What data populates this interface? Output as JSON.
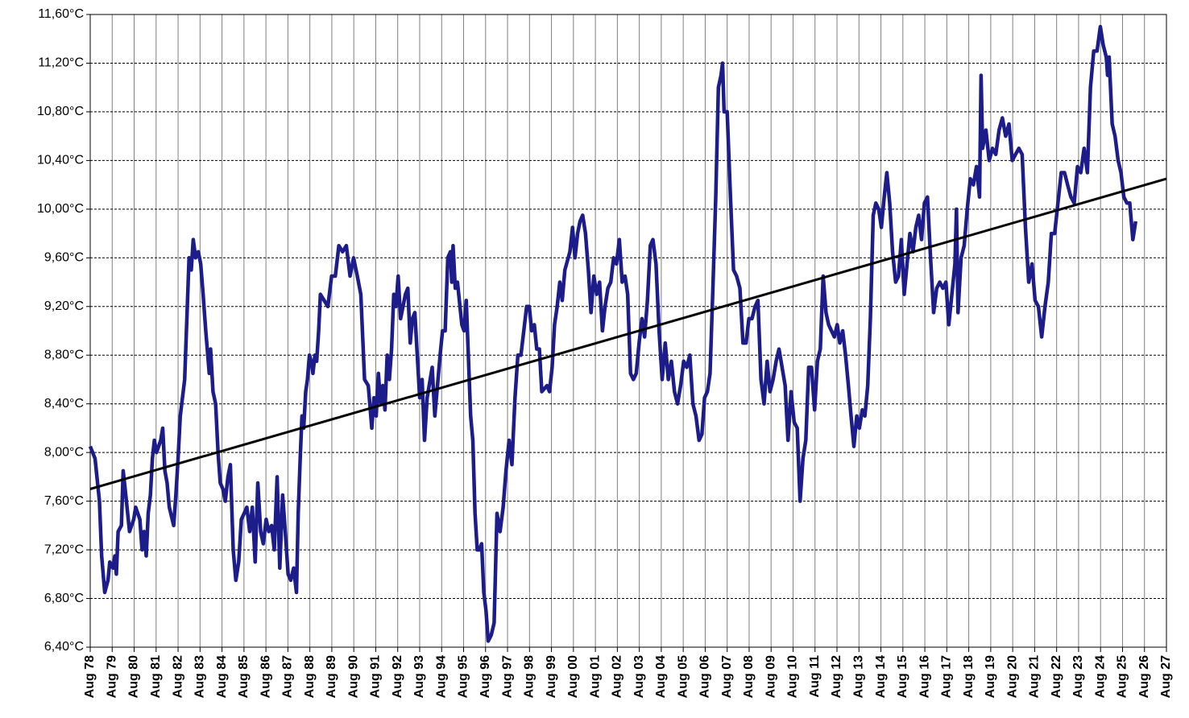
{
  "chart_data": {
    "type": "line",
    "xlim": [
      1978.58,
      2027.58
    ],
    "ylim": [
      6.4,
      11.6
    ],
    "grid": true,
    "xticks": [
      {
        "value": 1978.58,
        "label": "Aug 78"
      },
      {
        "value": 1979.58,
        "label": "Aug 79"
      },
      {
        "value": 1980.58,
        "label": "Aug 80"
      },
      {
        "value": 1981.58,
        "label": "Aug 81"
      },
      {
        "value": 1982.58,
        "label": "Aug 82"
      },
      {
        "value": 1983.58,
        "label": "Aug 83"
      },
      {
        "value": 1984.58,
        "label": "Aug 84"
      },
      {
        "value": 1985.58,
        "label": "Aug 85"
      },
      {
        "value": 1986.58,
        "label": "Aug 86"
      },
      {
        "value": 1987.58,
        "label": "Aug 87"
      },
      {
        "value": 1988.58,
        "label": "Aug 88"
      },
      {
        "value": 1989.58,
        "label": "Aug 89"
      },
      {
        "value": 1990.58,
        "label": "Aug 90"
      },
      {
        "value": 1991.58,
        "label": "Aug 91"
      },
      {
        "value": 1992.58,
        "label": "Aug 92"
      },
      {
        "value": 1993.58,
        "label": "Aug 93"
      },
      {
        "value": 1994.58,
        "label": "Aug 94"
      },
      {
        "value": 1995.58,
        "label": "Aug 95"
      },
      {
        "value": 1996.58,
        "label": "Aug 96"
      },
      {
        "value": 1997.58,
        "label": "Aug 97"
      },
      {
        "value": 1998.58,
        "label": "Aug 98"
      },
      {
        "value": 1999.58,
        "label": "Aug 99"
      },
      {
        "value": 2000.58,
        "label": "Aug 00"
      },
      {
        "value": 2001.58,
        "label": "Aug 01"
      },
      {
        "value": 2002.58,
        "label": "Aug 02"
      },
      {
        "value": 2003.58,
        "label": "Aug 03"
      },
      {
        "value": 2004.58,
        "label": "Aug 04"
      },
      {
        "value": 2005.58,
        "label": "Aug 05"
      },
      {
        "value": 2006.58,
        "label": "Aug 06"
      },
      {
        "value": 2007.58,
        "label": "Aug 07"
      },
      {
        "value": 2008.58,
        "label": "Aug 08"
      },
      {
        "value": 2009.58,
        "label": "Aug 09"
      },
      {
        "value": 2010.58,
        "label": "Aug 10"
      },
      {
        "value": 2011.58,
        "label": "Aug 11"
      },
      {
        "value": 2012.58,
        "label": "Aug 12"
      },
      {
        "value": 2013.58,
        "label": "Aug 13"
      },
      {
        "value": 2014.58,
        "label": "Aug 14"
      },
      {
        "value": 2015.58,
        "label": "Aug 15"
      },
      {
        "value": 2016.58,
        "label": "Aug 16"
      },
      {
        "value": 2017.58,
        "label": "Aug 17"
      },
      {
        "value": 2018.58,
        "label": "Aug 18"
      },
      {
        "value": 2019.58,
        "label": "Aug 19"
      },
      {
        "value": 2020.58,
        "label": "Aug 20"
      },
      {
        "value": 2021.58,
        "label": "Aug 21"
      },
      {
        "value": 2022.58,
        "label": "Aug 22"
      },
      {
        "value": 2023.58,
        "label": "Aug 23"
      },
      {
        "value": 2024.58,
        "label": "Aug 24"
      },
      {
        "value": 2025.58,
        "label": "Aug 25"
      },
      {
        "value": 2026.58,
        "label": "Aug 26"
      },
      {
        "value": 2027.58,
        "label": "Aug 27"
      }
    ],
    "yticks": [
      {
        "value": 6.4,
        "label": "6,40°C"
      },
      {
        "value": 6.8,
        "label": "6,80°C"
      },
      {
        "value": 7.2,
        "label": "7,20°C"
      },
      {
        "value": 7.6,
        "label": "7,60°C"
      },
      {
        "value": 8.0,
        "label": "8,00°C"
      },
      {
        "value": 8.4,
        "label": "8,40°C"
      },
      {
        "value": 8.8,
        "label": "8,80°C"
      },
      {
        "value": 9.2,
        "label": "9,20°C"
      },
      {
        "value": 9.6,
        "label": "9,60°C"
      },
      {
        "value": 10.0,
        "label": "10,00°C"
      },
      {
        "value": 10.4,
        "label": "10,40°C"
      },
      {
        "value": 10.8,
        "label": "10,80°C"
      },
      {
        "value": 11.2,
        "label": "11,20°C"
      },
      {
        "value": 11.6,
        "label": "11,60°C"
      }
    ],
    "series": [
      {
        "color": "#1c1c8a",
        "x": [
          1978.58,
          1978.8,
          1979.0,
          1979.1,
          1979.24,
          1979.39,
          1979.47,
          1979.62,
          1979.7,
          1979.77,
          1979.85,
          1980.0,
          1980.08,
          1980.17,
          1980.37,
          1980.56,
          1980.65,
          1980.84,
          1980.94,
          1981.03,
          1981.13,
          1981.22,
          1981.32,
          1981.41,
          1981.5,
          1981.6,
          1981.79,
          1981.88,
          1981.98,
          1982.08,
          1982.18,
          1982.38,
          1982.48,
          1982.58,
          1982.68,
          1982.88,
          1982.98,
          1983.08,
          1983.18,
          1983.27,
          1983.38,
          1983.5,
          1983.61,
          1983.72,
          1983.84,
          1984.0,
          1984.06,
          1984.17,
          1984.29,
          1984.4,
          1984.5,
          1984.62,
          1984.73,
          1984.85,
          1984.96,
          1985.09,
          1985.21,
          1985.34,
          1985.46,
          1985.59,
          1985.71,
          1985.84,
          1985.96,
          1986.09,
          1986.21,
          1986.34,
          1986.46,
          1986.59,
          1986.71,
          1986.84,
          1986.96,
          1987.09,
          1987.21,
          1987.34,
          1987.46,
          1987.59,
          1987.71,
          1987.84,
          1987.97,
          1988.05,
          1988.14,
          1988.22,
          1988.3,
          1988.39,
          1988.47,
          1988.56,
          1988.64,
          1988.72,
          1988.81,
          1988.89,
          1988.98,
          1989.06,
          1989.23,
          1989.4,
          1989.57,
          1989.74,
          1989.9,
          1990.07,
          1990.24,
          1990.41,
          1990.57,
          1990.74,
          1990.9,
          1991.07,
          1991.24,
          1991.4,
          1991.5,
          1991.6,
          1991.7,
          1991.8,
          1991.9,
          1992.0,
          1992.1,
          1992.2,
          1992.3,
          1992.4,
          1992.5,
          1992.6,
          1992.71,
          1992.82,
          1992.93,
          1993.04,
          1993.15,
          1993.25,
          1993.36,
          1993.47,
          1993.58,
          1993.69,
          1993.8,
          1993.92,
          1994.15,
          1994.27,
          1994.39,
          1994.51,
          1994.62,
          1994.74,
          1994.86,
          1994.98,
          1995.04,
          1995.1,
          1995.2,
          1995.3,
          1995.5,
          1995.6,
          1995.7,
          1995.9,
          1996.0,
          1996.1,
          1996.2,
          1996.3,
          1996.4,
          1996.5,
          1996.6,
          1996.7,
          1996.84,
          1996.97,
          1997.1,
          1997.24,
          1997.38,
          1997.51,
          1997.65,
          1997.78,
          1997.92,
          1998.05,
          1998.19,
          1998.32,
          1998.45,
          1998.57,
          1998.68,
          1998.8,
          1998.91,
          1999.03,
          1999.14,
          1999.38,
          1999.49,
          1999.61,
          1999.72,
          1999.84,
          1999.96,
          2000.07,
          2000.19,
          2000.42,
          2000.54,
          2000.65,
          2000.77,
          2000.88,
          2001.0,
          2001.13,
          2001.26,
          2001.38,
          2001.51,
          2001.64,
          2001.77,
          2001.9,
          2002.02,
          2002.15,
          2002.28,
          2002.41,
          2002.54,
          2002.67,
          2002.8,
          2002.93,
          2003.05,
          2003.18,
          2003.31,
          2003.44,
          2003.57,
          2003.7,
          2003.82,
          2003.95,
          2004.08,
          2004.2,
          2004.34,
          2004.48,
          2004.62,
          2004.76,
          2004.9,
          2005.04,
          2005.18,
          2005.32,
          2005.46,
          2005.6,
          2005.74,
          2005.88,
          2006.02,
          2006.16,
          2006.3,
          2006.43,
          2006.55,
          2006.68,
          2006.8,
          2006.93,
          2007.06,
          2007.18,
          2007.3,
          2007.37,
          2007.44,
          2007.58,
          2007.73,
          2007.87,
          2008.01,
          2008.16,
          2008.3,
          2008.44,
          2008.57,
          2008.71,
          2008.85,
          2008.98,
          2009.12,
          2009.26,
          2009.4,
          2009.53,
          2009.67,
          2009.81,
          2009.94,
          2010.08,
          2010.22,
          2010.35,
          2010.49,
          2010.63,
          2010.77,
          2010.9,
          2011.03,
          2011.16,
          2011.29,
          2011.42,
          2011.56,
          2011.69,
          2011.82,
          2011.95,
          2012.08,
          2012.2,
          2012.33,
          2012.46,
          2012.59,
          2012.71,
          2012.84,
          2012.97,
          2013.1,
          2013.22,
          2013.35,
          2013.48,
          2013.6,
          2013.73,
          2013.85,
          2013.98,
          2014.1,
          2014.23,
          2014.35,
          2014.48,
          2014.6,
          2014.73,
          2014.85,
          2014.98,
          2015.11,
          2015.25,
          2015.38,
          2015.51,
          2015.64,
          2015.77,
          2015.9,
          2016.04,
          2016.17,
          2016.3,
          2016.43,
          2016.56,
          2016.7,
          2016.84,
          2016.98,
          2017.12,
          2017.26,
          2017.4,
          2017.54,
          2017.67,
          2017.81,
          2017.95,
          2018.02,
          2018.09,
          2018.23,
          2018.37,
          2018.51,
          2018.65,
          2018.79,
          2018.93,
          2019.07,
          2019.14,
          2019.21,
          2019.36,
          2019.51,
          2019.66,
          2019.81,
          2019.96,
          2020.11,
          2020.26,
          2020.41,
          2020.56,
          2020.71,
          2020.86,
          2021.01,
          2021.16,
          2021.31,
          2021.46,
          2021.6,
          2021.75,
          2021.9,
          2022.05,
          2022.2,
          2022.34,
          2022.49,
          2022.64,
          2022.79,
          2022.94,
          2023.08,
          2023.23,
          2023.38,
          2023.53,
          2023.68,
          2023.83,
          2023.98,
          2024.12,
          2024.27,
          2024.42,
          2024.57,
          2024.7,
          2024.84,
          2024.9,
          2024.97,
          2025.11,
          2025.24,
          2025.38,
          2025.51,
          2025.64,
          2025.78,
          2025.91,
          2026.05,
          2026.18
        ],
        "values": [
          8.05,
          7.95,
          7.6,
          7.15,
          6.85,
          6.95,
          7.1,
          7.05,
          7.15,
          7.0,
          7.35,
          7.4,
          7.85,
          7.7,
          7.35,
          7.45,
          7.55,
          7.45,
          7.2,
          7.35,
          7.15,
          7.5,
          7.65,
          7.95,
          8.1,
          8.0,
          8.1,
          8.2,
          7.85,
          7.75,
          7.55,
          7.4,
          7.65,
          7.95,
          8.3,
          8.6,
          9.1,
          9.6,
          9.5,
          9.75,
          9.6,
          9.65,
          9.55,
          9.3,
          9.0,
          8.65,
          8.85,
          8.5,
          8.4,
          8.0,
          7.75,
          7.7,
          7.6,
          7.8,
          7.9,
          7.2,
          6.95,
          7.1,
          7.45,
          7.5,
          7.55,
          7.35,
          7.55,
          7.1,
          7.75,
          7.35,
          7.25,
          7.45,
          7.35,
          7.4,
          7.2,
          7.8,
          7.05,
          7.65,
          7.35,
          7.0,
          6.95,
          7.05,
          6.85,
          7.5,
          7.95,
          8.3,
          8.2,
          8.5,
          8.6,
          8.8,
          8.75,
          8.65,
          8.8,
          8.75,
          9.0,
          9.3,
          9.25,
          9.2,
          9.45,
          9.45,
          9.7,
          9.65,
          9.7,
          9.45,
          9.6,
          9.45,
          9.3,
          8.6,
          8.55,
          8.2,
          8.45,
          8.3,
          8.65,
          8.4,
          8.55,
          8.35,
          8.8,
          8.6,
          8.85,
          9.3,
          9.2,
          9.45,
          9.1,
          9.2,
          9.3,
          9.35,
          8.9,
          9.1,
          9.15,
          8.8,
          8.45,
          8.6,
          8.1,
          8.45,
          8.7,
          8.3,
          8.55,
          8.8,
          9.0,
          9.0,
          9.6,
          9.65,
          9.4,
          9.7,
          9.35,
          9.4,
          9.05,
          9.0,
          9.25,
          8.3,
          8.1,
          7.5,
          7.2,
          7.2,
          7.25,
          6.85,
          6.7,
          6.45,
          6.5,
          6.6,
          7.5,
          7.35,
          7.55,
          7.85,
          8.1,
          7.9,
          8.45,
          8.8,
          8.8,
          9.0,
          9.2,
          9.2,
          9.0,
          9.05,
          8.85,
          8.85,
          8.5,
          8.55,
          8.5,
          8.7,
          9.05,
          9.2,
          9.4,
          9.25,
          9.5,
          9.65,
          9.85,
          9.6,
          9.8,
          9.9,
          9.95,
          9.8,
          9.5,
          9.15,
          9.45,
          9.3,
          9.4,
          9.0,
          9.2,
          9.35,
          9.4,
          9.6,
          9.55,
          9.75,
          9.4,
          9.45,
          9.3,
          8.65,
          8.6,
          8.65,
          8.9,
          9.1,
          8.95,
          9.25,
          9.7,
          9.75,
          9.55,
          9.0,
          8.6,
          8.9,
          8.6,
          8.75,
          8.5,
          8.4,
          8.55,
          8.75,
          8.7,
          8.8,
          8.4,
          8.3,
          8.1,
          8.15,
          8.45,
          8.5,
          8.65,
          9.35,
          10.1,
          11.0,
          11.1,
          11.2,
          10.8,
          10.8,
          10.1,
          9.5,
          9.45,
          9.35,
          8.9,
          8.9,
          9.1,
          9.1,
          9.2,
          9.25,
          8.6,
          8.4,
          8.75,
          8.5,
          8.6,
          8.75,
          8.85,
          8.7,
          8.55,
          8.1,
          8.5,
          8.25,
          8.2,
          7.6,
          7.95,
          8.1,
          8.7,
          8.7,
          8.35,
          8.75,
          8.85,
          9.45,
          9.15,
          9.05,
          9.0,
          8.95,
          9.05,
          8.9,
          9.0,
          8.8,
          8.55,
          8.3,
          8.05,
          8.3,
          8.2,
          8.35,
          8.3,
          8.55,
          9.1,
          9.95,
          10.05,
          10.0,
          9.85,
          10.1,
          10.3,
          10.05,
          9.65,
          9.4,
          9.45,
          9.75,
          9.3,
          9.55,
          9.8,
          9.65,
          9.85,
          9.95,
          9.75,
          10.05,
          10.1,
          9.6,
          9.15,
          9.35,
          9.4,
          9.35,
          9.4,
          9.05,
          9.3,
          9.55,
          10.0,
          9.15,
          9.6,
          9.7,
          10.0,
          10.25,
          10.2,
          10.35,
          10.1,
          11.1,
          10.5,
          10.65,
          10.4,
          10.5,
          10.45,
          10.65,
          10.75,
          10.6,
          10.7,
          10.4,
          10.45,
          10.5,
          10.45,
          9.85,
          9.4,
          9.55,
          9.25,
          9.2,
          8.95,
          9.2,
          9.4,
          9.8,
          9.8,
          10.05,
          10.3,
          10.3,
          10.2,
          10.1,
          10.05,
          10.35,
          10.3,
          10.5,
          10.3,
          11.0,
          11.3,
          11.3,
          11.5,
          11.35,
          11.25,
          11.1,
          11.25,
          10.7,
          10.6,
          10.4,
          10.3,
          10.1,
          10.05,
          10.05,
          9.75,
          9.9
        ]
      },
      {
        "color": "#000000",
        "x": [
          1978.58,
          2027.58
        ],
        "values": [
          7.7,
          10.25
        ]
      }
    ]
  }
}
